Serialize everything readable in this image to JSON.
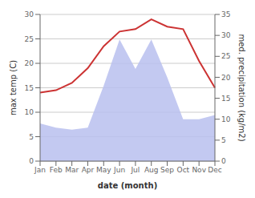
{
  "chart_data": {
    "type": "line",
    "categories": [
      "Jan",
      "Feb",
      "Mar",
      "Apr",
      "May",
      "Jun",
      "Jul",
      "Aug",
      "Sep",
      "Oct",
      "Nov",
      "Dec"
    ],
    "series": [
      {
        "type": "area",
        "axis": "y2",
        "color": "#b8bfee",
        "values": [
          9,
          8,
          7.5,
          8,
          18,
          29,
          22,
          29,
          20,
          10,
          10,
          11
        ]
      },
      {
        "type": "line",
        "color": "#cc3333",
        "values": [
          14,
          14.5,
          16,
          19,
          23.5,
          26.5,
          27,
          29,
          27.5,
          27,
          20.5,
          15
        ]
      }
    ],
    "xlabel": "date (month)",
    "ylabel": "max temp (C)",
    "y2label": "med. precipitation (kg/m2)",
    "ylim": [
      0,
      30
    ],
    "yticks": [
      0,
      5,
      10,
      15,
      20,
      25,
      30
    ],
    "y2lim": [
      0,
      35
    ],
    "y2ticks": [
      0,
      5,
      10,
      15,
      20,
      25,
      30,
      35
    ],
    "grid": true
  }
}
